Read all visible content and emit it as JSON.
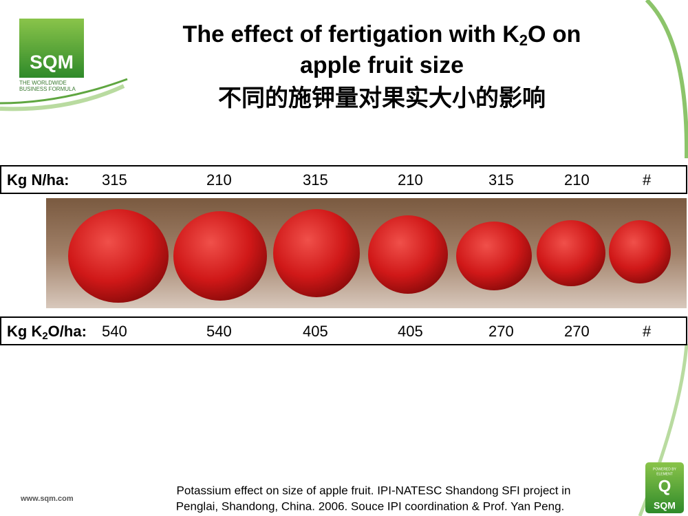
{
  "logo": {
    "name": "SQM",
    "tagline": [
      "THE WORLDWIDE",
      "BUSINESS FORMULA"
    ]
  },
  "title": {
    "line1": [
      "The effect of fertigation with K",
      "2",
      "O on"
    ],
    "line2": "apple fruit size",
    "line3": "不同的施钾量对果实大小的影响"
  },
  "table": {
    "rows": [
      {
        "label": [
          "Kg N/ha:"
        ],
        "values": [
          315,
          210,
          315,
          210,
          315,
          210,
          "#"
        ]
      },
      {
        "label": [
          "Kg K",
          "2",
          "O/ha:"
        ],
        "values": [
          540,
          540,
          405,
          405,
          270,
          270,
          "#"
        ]
      }
    ]
  },
  "caption": [
    "Potassium effect on size of apple fruit. IPI-NATESC Shandong SFI project in",
    "Penglai, Shandong, China. 2006. Souce IPI coordination & Prof. Yan Peng."
  ],
  "footer": {
    "website": "www.sqm.com",
    "badge": [
      "POWERED BY",
      "ELEMENT",
      "Q",
      "SQM"
    ]
  }
}
